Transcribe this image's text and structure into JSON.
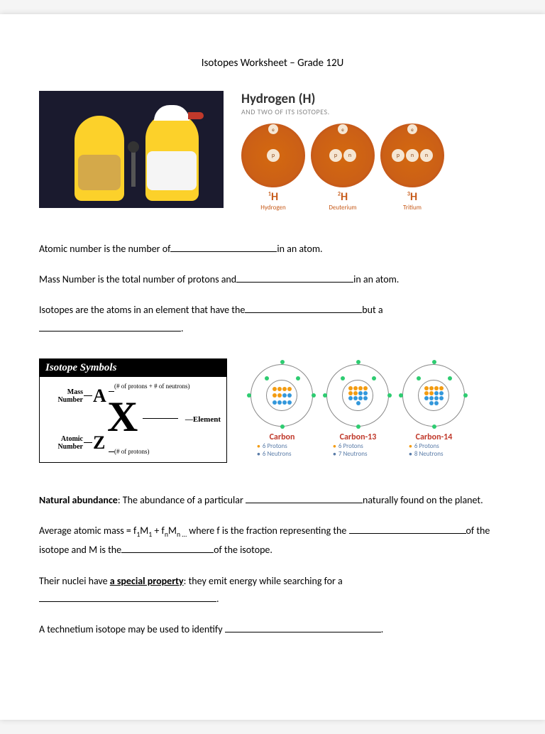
{
  "title": "Isotopes Worksheet – Grade 12U",
  "hydrogen": {
    "title": "Hydrogen (H)",
    "subtitle": "AND TWO OF ITS ISOTOPES.",
    "atoms": [
      {
        "sym": "H",
        "sup": "1",
        "name": "Hydrogen",
        "p": 1,
        "n": 0
      },
      {
        "sym": "H",
        "sup": "2",
        "name": "Deuterium",
        "p": 1,
        "n": 1
      },
      {
        "sym": "H",
        "sup": "3",
        "name": "Tritium",
        "p": 1,
        "n": 2
      }
    ]
  },
  "statements": {
    "s1a": "Atomic number is the number of",
    "s1b": "in an atom.",
    "s2a": "Mass Number is the total number of protons and",
    "s2b": "in an atom.",
    "s3a": "Isotopes are the atoms in an element that have the",
    "s3b": "but a",
    "s3c": ".",
    "s4a": "Natural abundance",
    "s4b": ": The abundance of a particular ",
    "s4c": "naturally found on the planet.",
    "s5a": "Average atomic mass = f",
    "s5b": "M",
    "s5c": " + f",
    "s5d": "M",
    "s5e": " where f is the fraction representing the ",
    "s5f": "of the isotope and M is the",
    "s5g": "of the isotope.",
    "s6a": "Their nuclei have ",
    "s6b": "a special property",
    "s6c": ": they emit energy while searching for a  ",
    "s6d": ".",
    "s7a": "A technetium isotope may be used to identify ",
    "s7b": "."
  },
  "isoSymbols": {
    "header": "Isotope Symbols",
    "mass": "Mass Number",
    "atomic": "Atomic Number",
    "pn": "(# of protons + # of neutrons)",
    "element": "Element",
    "p": "(# of protons)"
  },
  "carbon": [
    {
      "name": "Carbon",
      "p": "6 Protons",
      "n": "6 Neutrons",
      "neutrons": 6
    },
    {
      "name": "Carbon-13",
      "p": "6 Protons",
      "n": "7 Neutrons",
      "neutrons": 7
    },
    {
      "name": "Carbon-14",
      "p": "6 Protons",
      "n": "8 Neutrons",
      "neutrons": 8
    }
  ]
}
